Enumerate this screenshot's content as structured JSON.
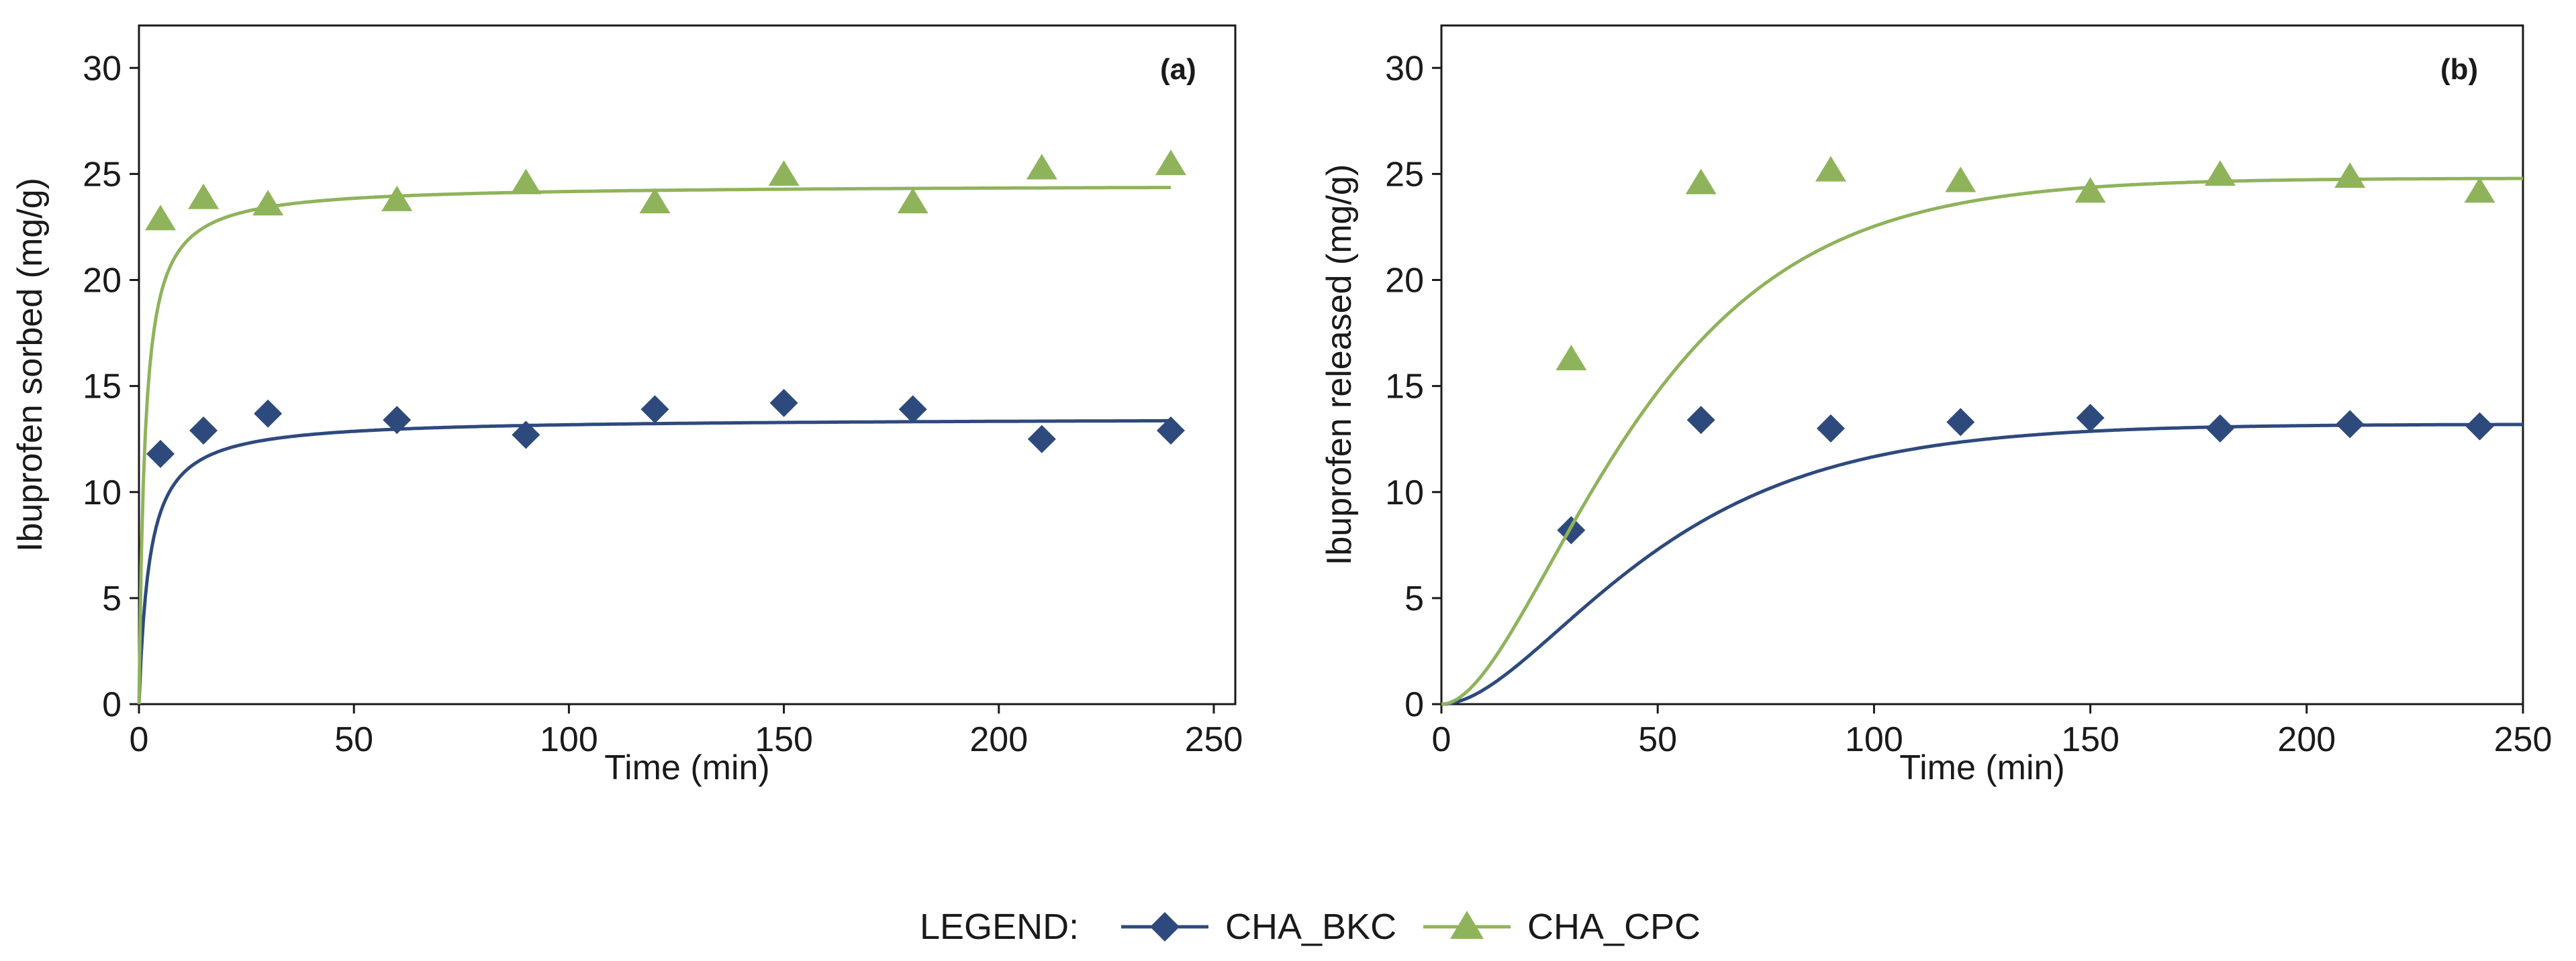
{
  "colors": {
    "bkc": "#2e4a7d",
    "cpc": "#8fb35b",
    "axis": "#1a1a1a"
  },
  "legend": {
    "prefix": "LEGEND:",
    "items": [
      {
        "label": "CHA_BKC",
        "series": "bkc",
        "marker": "diamond"
      },
      {
        "label": "CHA_CPC",
        "series": "cpc",
        "marker": "triangle"
      }
    ]
  },
  "chart_data": [
    {
      "type": "scatter",
      "panel_tag": "(a)",
      "xlabel": "Time (min)",
      "ylabel": "Ibuprofen sorbed (mg/g)",
      "xlim": [
        0,
        255
      ],
      "ylim": [
        0,
        32
      ],
      "xticks": [
        0,
        50,
        100,
        150,
        200,
        250
      ],
      "yticks": [
        0,
        5,
        10,
        15,
        20,
        25,
        30
      ],
      "series": [
        {
          "key": "bkc",
          "name": "CHA_BKC",
          "marker": "diamond",
          "points": [
            [
              5,
              11.8
            ],
            [
              15,
              12.9
            ],
            [
              30,
              13.7
            ],
            [
              60,
              13.4
            ],
            [
              90,
              12.7
            ],
            [
              120,
              13.9
            ],
            [
              150,
              14.2
            ],
            [
              180,
              13.9
            ],
            [
              210,
              12.5
            ],
            [
              240,
              12.9
            ]
          ],
          "fit": {
            "qe": 13.5,
            "k": 0.03,
            "x_end": 240
          }
        },
        {
          "key": "cpc",
          "name": "CHA_CPC",
          "marker": "triangle",
          "points": [
            [
              5,
              22.8
            ],
            [
              15,
              23.8
            ],
            [
              30,
              23.5
            ],
            [
              60,
              23.7
            ],
            [
              90,
              24.5
            ],
            [
              120,
              23.6
            ],
            [
              150,
              24.9
            ],
            [
              180,
              23.6
            ],
            [
              210,
              25.2
            ],
            [
              240,
              25.4
            ]
          ],
          "fit": {
            "qe": 24.5,
            "k": 0.03,
            "x_end": 240
          }
        }
      ]
    },
    {
      "type": "scatter",
      "panel_tag": "(b)",
      "xlabel": "Time (min)",
      "ylabel": "Ibuprofen  released (mg/g)",
      "xlim": [
        0,
        250
      ],
      "ylim": [
        0,
        32
      ],
      "xticks": [
        0,
        50,
        100,
        150,
        200,
        250
      ],
      "yticks": [
        0,
        5,
        10,
        15,
        20,
        25,
        30
      ],
      "series": [
        {
          "key": "bkc",
          "name": "CHA_BKC",
          "marker": "diamond",
          "points": [
            [
              30,
              8.2
            ],
            [
              60,
              13.4
            ],
            [
              90,
              13.0
            ],
            [
              120,
              13.3
            ],
            [
              150,
              13.5
            ],
            [
              180,
              13.0
            ],
            [
              210,
              13.2
            ],
            [
              240,
              13.1
            ]
          ],
          "fit": {
            "qe": 13.2,
            "tau": 27,
            "x_end": 250
          }
        },
        {
          "key": "cpc",
          "name": "CHA_CPC",
          "marker": "triangle",
          "points": [
            [
              30,
              16.2
            ],
            [
              60,
              24.5
            ],
            [
              90,
              25.1
            ],
            [
              120,
              24.6
            ],
            [
              150,
              24.1
            ],
            [
              180,
              24.9
            ],
            [
              210,
              24.8
            ],
            [
              240,
              24.1
            ]
          ],
          "fit": {
            "qe": 24.8,
            "tau": 25,
            "x_end": 250
          }
        }
      ]
    }
  ]
}
